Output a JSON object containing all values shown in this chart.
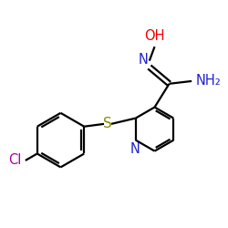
{
  "background_color": "#ffffff",
  "atom_colors": {
    "N": "#2222cc",
    "O": "#ee0000",
    "S": "#888800",
    "Cl": "#aa00aa"
  },
  "bond_color": "#000000",
  "bond_width": 1.6,
  "font_size": 10.5
}
